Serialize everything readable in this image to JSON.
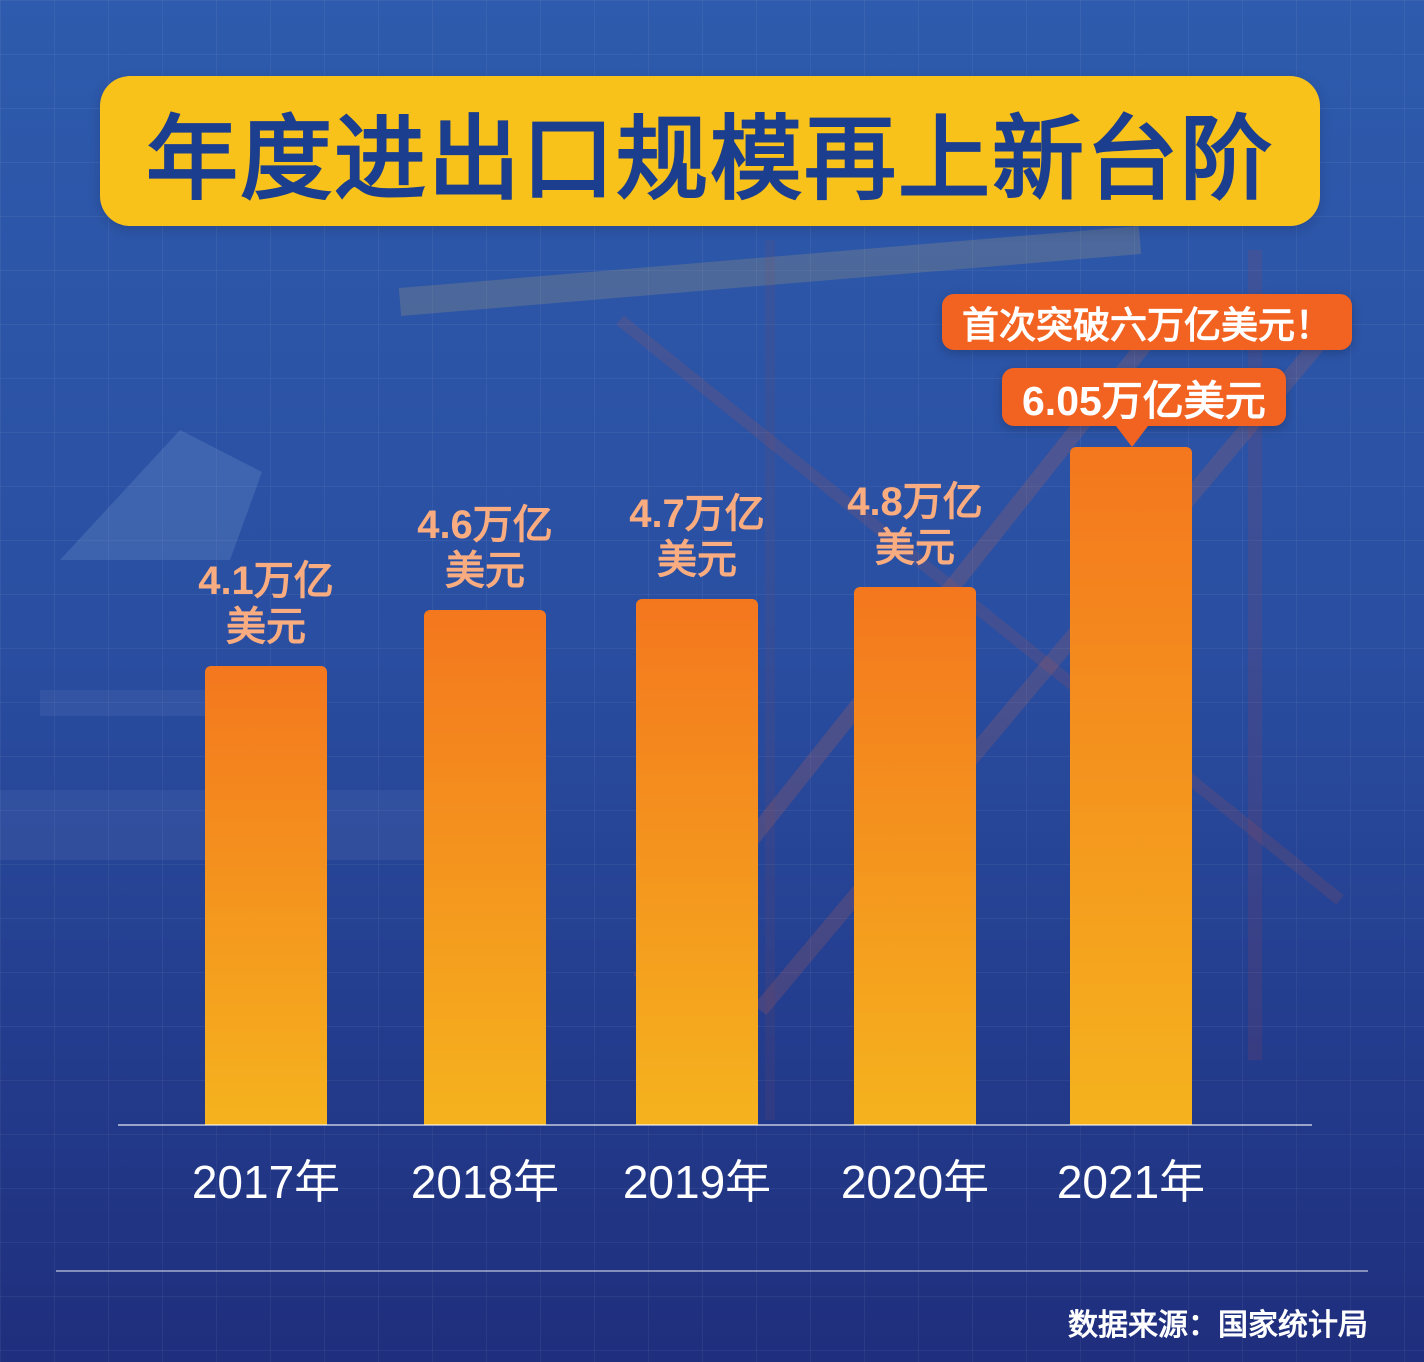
{
  "title": "年度进出口规模再上新台阶",
  "annotation": {
    "headline": "首次突破六万亿美元！",
    "value_badge": "6.05万亿美元"
  },
  "source": "数据来源：国家统计局",
  "colors": {
    "background_top": "#2E5BAD",
    "background_bottom": "#1F2E7D",
    "title_bg": "#F9C21B",
    "title_text": "#1C3E8E",
    "bar_top": "#F4771E",
    "bar_bottom": "#F5B31E",
    "value_label": "#F9AC80",
    "callout_bg": "#F26322",
    "callout_text": "#FFFFFF"
  },
  "chart_data": {
    "type": "bar",
    "title": "年度进出口规模再上新台阶",
    "categories": [
      "2017年",
      "2018年",
      "2019年",
      "2020年",
      "2021年"
    ],
    "values": [
      4.1,
      4.6,
      4.7,
      4.8,
      6.05
    ],
    "unit": "万亿美元",
    "bar_labels": [
      "4.1万亿\n美元",
      "4.6万亿\n美元",
      "4.7万亿\n美元",
      "4.8万亿\n美元",
      null
    ],
    "annotations": [
      "首次突破六万亿美元！",
      "6.05万亿美元"
    ],
    "xlabel": "",
    "ylabel": "",
    "ylim": [
      0,
      6.5
    ],
    "legend": false,
    "grid": false,
    "source": "数据来源：国家统计局"
  }
}
